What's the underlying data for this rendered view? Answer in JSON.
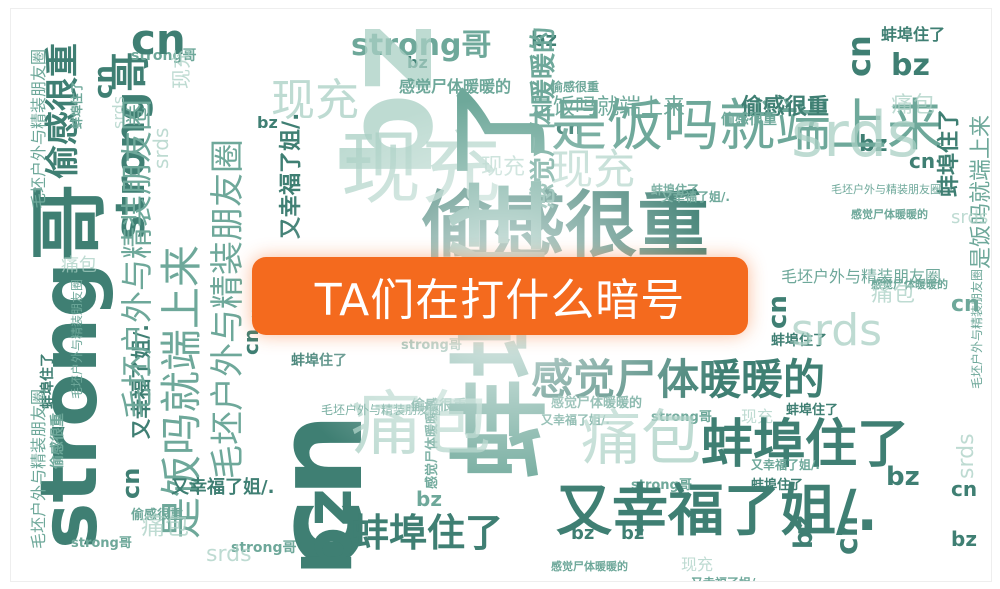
{
  "banner": {
    "title": "TA们在打什么暗号"
  },
  "cloud": {
    "words": [
      "strong哥",
      "cn",
      "bz",
      "是饭吗就端上来",
      "偷感很重",
      "现充",
      "蚌埠住了",
      "感觉尸体暖暖的",
      "又幸福了姐/.",
      "痛包",
      "srds",
      "毛坯户外与精装朋友圈"
    ]
  },
  "colors": {
    "banner": "#f46a1e",
    "banner_text": "#ffffff",
    "dark_teal": "#3f7f73",
    "mid_teal": "#6ea89a",
    "light_teal": "#a9cfc4"
  }
}
